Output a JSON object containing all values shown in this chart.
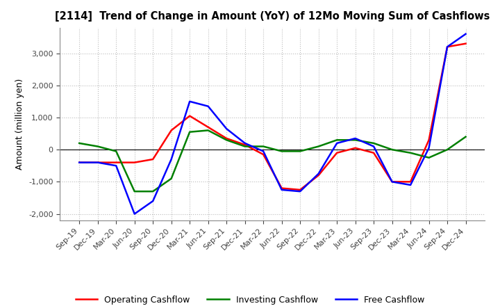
{
  "title": "[2114]  Trend of Change in Amount (YoY) of 12Mo Moving Sum of Cashflows",
  "ylabel": "Amount (million yen)",
  "x_labels": [
    "Sep-19",
    "Dec-19",
    "Mar-20",
    "Jun-20",
    "Sep-20",
    "Dec-20",
    "Mar-21",
    "Jun-21",
    "Sep-21",
    "Dec-21",
    "Mar-22",
    "Jun-22",
    "Sep-22",
    "Dec-22",
    "Mar-23",
    "Jun-23",
    "Sep-23",
    "Dec-23",
    "Mar-24",
    "Jun-24",
    "Sep-24",
    "Dec-24"
  ],
  "operating": [
    -400,
    -400,
    -400,
    -400,
    -300,
    600,
    1050,
    700,
    350,
    150,
    -150,
    -1200,
    -1250,
    -800,
    -100,
    50,
    -100,
    -1000,
    -1000,
    300,
    3200,
    3300
  ],
  "investing": [
    200,
    100,
    -50,
    -1300,
    -1300,
    -900,
    550,
    600,
    300,
    100,
    100,
    -50,
    -50,
    100,
    300,
    300,
    200,
    0,
    -100,
    -250,
    0,
    400
  ],
  "free": [
    -400,
    -400,
    -500,
    -2000,
    -1600,
    -300,
    1500,
    1350,
    650,
    200,
    -50,
    -1250,
    -1300,
    -750,
    200,
    350,
    100,
    -1000,
    -1100,
    50,
    3200,
    3600
  ],
  "ylim": [
    -2200,
    3800
  ],
  "yticks": [
    -2000,
    -1000,
    0,
    1000,
    2000,
    3000
  ],
  "operating_color": "#ff0000",
  "investing_color": "#008000",
  "free_color": "#0000ff",
  "bg_color": "#ffffff",
  "grid_color": "#bbbbbb"
}
